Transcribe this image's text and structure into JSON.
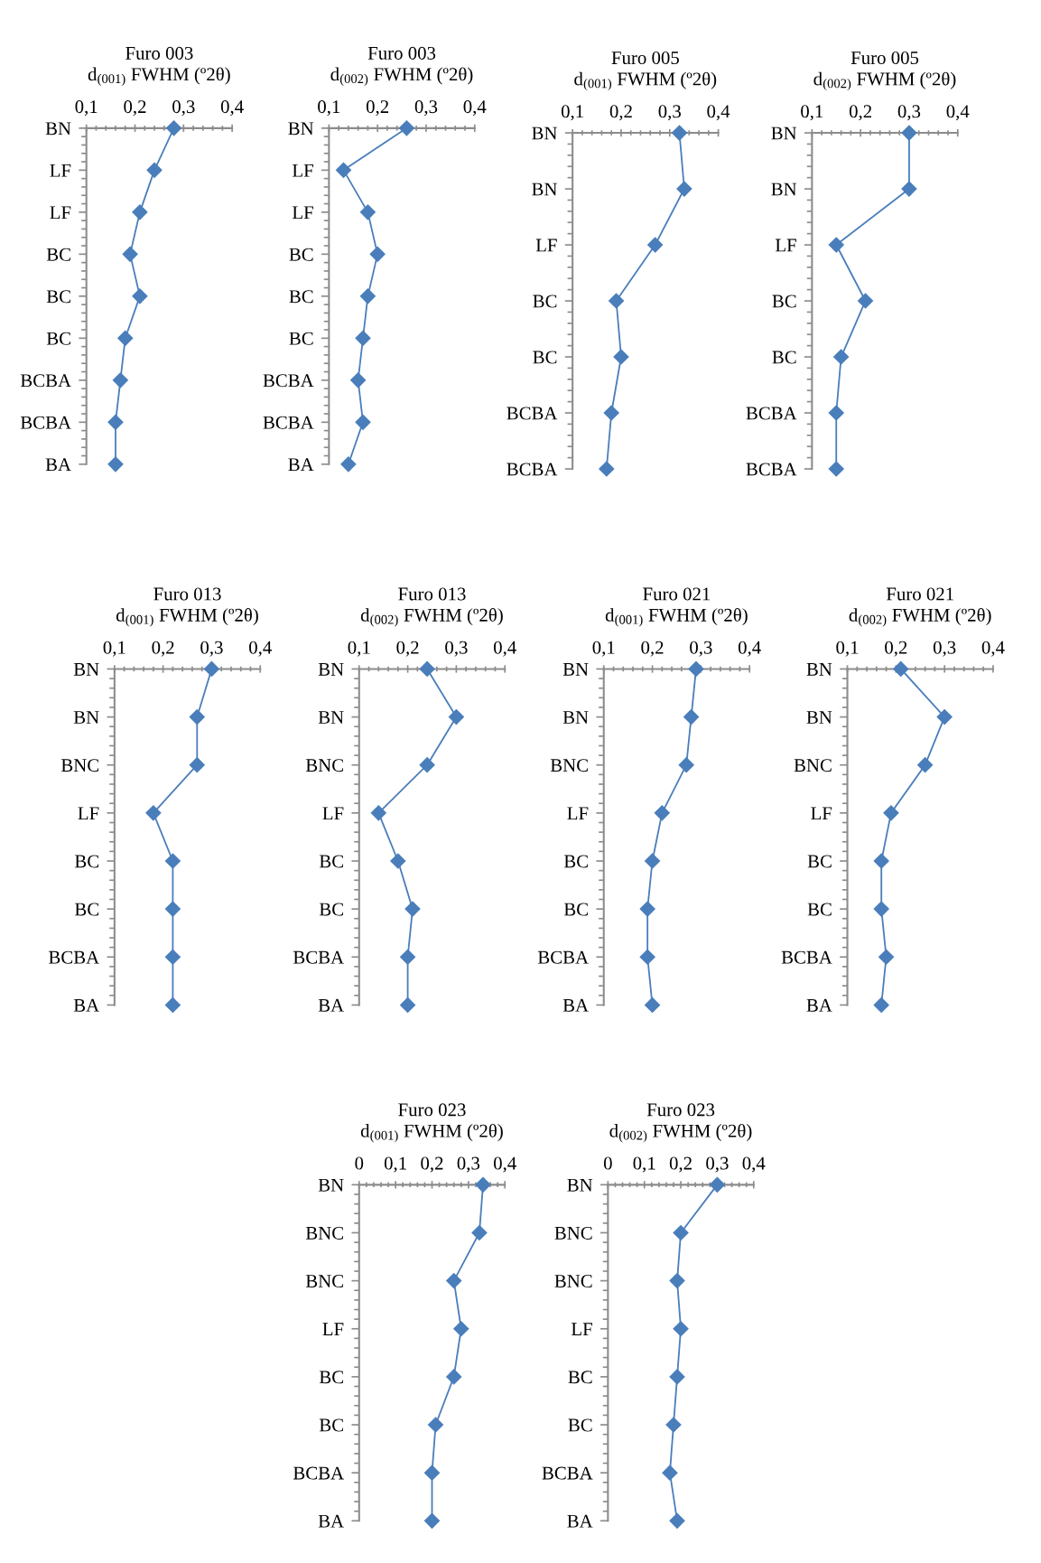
{
  "chart_data": [
    {
      "type": "line",
      "orientation": "horizontal",
      "title": "Furo 003\nd$_{(001)}$ FWHM (º2θ)",
      "categories": [
        "BN",
        "LF",
        "LF",
        "BC",
        "BC",
        "BC",
        "BCBA",
        "BCBA",
        "BA"
      ],
      "values": [
        0.28,
        0.24,
        0.21,
        0.19,
        0.21,
        0.18,
        0.17,
        0.16,
        0.16
      ],
      "color": "#4a7ebb",
      "marker": "diamond",
      "xlim": [
        0.1,
        0.4
      ],
      "xticks": [
        {
          "value": 0.1,
          "label": "0,1"
        },
        {
          "value": 0.2,
          "label": "0,2"
        },
        {
          "value": 0.3,
          "label": "0,3"
        },
        {
          "value": 0.4,
          "label": "0,4"
        }
      ]
    },
    {
      "type": "line",
      "orientation": "horizontal",
      "title": "Furo 003\nd$_{(002)}$ FWHM (º2θ)",
      "categories": [
        "BN",
        "LF",
        "LF",
        "BC",
        "BC",
        "BC",
        "BCBA",
        "BCBA",
        "BA"
      ],
      "values": [
        0.26,
        0.13,
        0.18,
        0.2,
        0.18,
        0.17,
        0.16,
        0.17,
        0.14
      ],
      "color": "#4a7ebb",
      "marker": "diamond",
      "xlim": [
        0.1,
        0.4
      ],
      "xticks": [
        {
          "value": 0.1,
          "label": "0,1"
        },
        {
          "value": 0.2,
          "label": "0,2"
        },
        {
          "value": 0.3,
          "label": "0,3"
        },
        {
          "value": 0.4,
          "label": "0,4"
        }
      ]
    },
    {
      "type": "line",
      "orientation": "horizontal",
      "title": "Furo 005\nd$_{(001)}$ FWHM (º2θ)",
      "categories": [
        "BN",
        "BN",
        "LF",
        "BC",
        "BC",
        "BCBA",
        "BCBA"
      ],
      "values": [
        0.32,
        0.33,
        0.27,
        0.19,
        0.2,
        0.18,
        0.17
      ],
      "color": "#4a7ebb",
      "marker": "diamond",
      "xlim": [
        0.1,
        0.4
      ],
      "xticks": [
        {
          "value": 0.1,
          "label": "0,1"
        },
        {
          "value": 0.2,
          "label": "0,2"
        },
        {
          "value": 0.3,
          "label": "0,3"
        },
        {
          "value": 0.4,
          "label": "0,4"
        }
      ]
    },
    {
      "type": "line",
      "orientation": "horizontal",
      "title": "Furo 005\nd$_{(002)}$ FWHM (º2θ)",
      "categories": [
        "BN",
        "BN",
        "LF",
        "BC",
        "BC",
        "BCBA",
        "BCBA"
      ],
      "values": [
        0.3,
        0.3,
        0.15,
        0.21,
        0.16,
        0.15,
        0.15
      ],
      "color": "#4a7ebb",
      "marker": "diamond",
      "xlim": [
        0.1,
        0.4
      ],
      "xticks": [
        {
          "value": 0.1,
          "label": "0,1"
        },
        {
          "value": 0.2,
          "label": "0,2"
        },
        {
          "value": 0.3,
          "label": "0,3"
        },
        {
          "value": 0.4,
          "label": "0,4"
        }
      ]
    },
    {
      "type": "line",
      "orientation": "horizontal",
      "title": "Furo 013\nd$_{(001)}$ FWHM (º2θ)",
      "categories": [
        "BN",
        "BN",
        "BNC",
        "LF",
        "BC",
        "BC",
        "BCBA",
        "BA"
      ],
      "values": [
        0.3,
        0.27,
        0.27,
        0.18,
        0.22,
        0.22,
        0.22,
        0.22
      ],
      "color": "#4a7ebb",
      "marker": "diamond",
      "xlim": [
        0.1,
        0.4
      ],
      "xticks": [
        {
          "value": 0.1,
          "label": "0,1"
        },
        {
          "value": 0.2,
          "label": "0,2"
        },
        {
          "value": 0.3,
          "label": "0,3"
        },
        {
          "value": 0.4,
          "label": "0,4"
        }
      ]
    },
    {
      "type": "line",
      "orientation": "horizontal",
      "title": "Furo 013\nd$_{(002)}$ FWHM (º2θ)",
      "categories": [
        "BN",
        "BN",
        "BNC",
        "LF",
        "BC",
        "BC",
        "BCBA",
        "BA"
      ],
      "values": [
        0.24,
        0.3,
        0.24,
        0.14,
        0.18,
        0.21,
        0.2,
        0.2
      ],
      "color": "#4a7ebb",
      "marker": "diamond",
      "xlim": [
        0.1,
        0.4
      ],
      "xticks": [
        {
          "value": 0.1,
          "label": "0,1"
        },
        {
          "value": 0.2,
          "label": "0,2"
        },
        {
          "value": 0.3,
          "label": "0,3"
        },
        {
          "value": 0.4,
          "label": "0,4"
        }
      ]
    },
    {
      "type": "line",
      "orientation": "horizontal",
      "title": "Furo 021\nd$_{(001)}$ FWHM (º2θ)",
      "categories": [
        "BN",
        "BN",
        "BNC",
        "LF",
        "BC",
        "BC",
        "BCBA",
        "BA"
      ],
      "values": [
        0.29,
        0.28,
        0.27,
        0.22,
        0.2,
        0.19,
        0.19,
        0.2
      ],
      "color": "#4a7ebb",
      "marker": "diamond",
      "xlim": [
        0.1,
        0.4
      ],
      "xticks": [
        {
          "value": 0.1,
          "label": "0,1"
        },
        {
          "value": 0.2,
          "label": "0,2"
        },
        {
          "value": 0.3,
          "label": "0,3"
        },
        {
          "value": 0.4,
          "label": "0,4"
        }
      ]
    },
    {
      "type": "line",
      "orientation": "horizontal",
      "title": "Furo 021\nd$_{(002)}$ FWHM (º2θ)",
      "categories": [
        "BN",
        "BN",
        "BNC",
        "LF",
        "BC",
        "BC",
        "BCBA",
        "BA"
      ],
      "values": [
        0.21,
        0.3,
        0.26,
        0.19,
        0.17,
        0.17,
        0.18,
        0.17
      ],
      "color": "#4a7ebb",
      "marker": "diamond",
      "xlim": [
        0.1,
        0.4
      ],
      "xticks": [
        {
          "value": 0.1,
          "label": "0,1"
        },
        {
          "value": 0.2,
          "label": "0,2"
        },
        {
          "value": 0.3,
          "label": "0,3"
        },
        {
          "value": 0.4,
          "label": "0,4"
        }
      ]
    },
    {
      "type": "line",
      "orientation": "horizontal",
      "title": "Furo 023\nd$_{(001)}$ FWHM (º2θ)",
      "categories": [
        "BN",
        "BNC",
        "BNC",
        "LF",
        "BC",
        "BC",
        "BCBA",
        "BA"
      ],
      "values": [
        0.34,
        0.33,
        0.26,
        0.28,
        0.26,
        0.21,
        0.2,
        0.2
      ],
      "color": "#4a7ebb",
      "marker": "diamond",
      "xlim": [
        0,
        0.4
      ],
      "xticks": [
        0,
        {
          "value": 0.1,
          "label": "0,1"
        },
        {
          "value": 0.2,
          "label": "0,2"
        },
        {
          "value": 0.3,
          "label": "0,3"
        },
        {
          "value": 0.4,
          "label": "0,4"
        }
      ]
    },
    {
      "type": "line",
      "orientation": "horizontal",
      "title": "Furo 023\nd$_{(002)}$ FWHM (º2θ)",
      "categories": [
        "BN",
        "BNC",
        "BNC",
        "LF",
        "BC",
        "BC",
        "BCBA",
        "BA"
      ],
      "values": [
        0.3,
        0.2,
        0.19,
        0.2,
        0.19,
        0.18,
        0.17,
        0.19
      ],
      "color": "#4a7ebb",
      "marker": "diamond",
      "xlim": [
        0,
        0.4
      ],
      "xticks": [
        0,
        {
          "value": 0.1,
          "label": "0,1"
        },
        {
          "value": 0.2,
          "label": "0,2"
        },
        {
          "value": 0.3,
          "label": "0,3"
        },
        {
          "value": 0.4,
          "label": "0,4"
        }
      ]
    }
  ]
}
